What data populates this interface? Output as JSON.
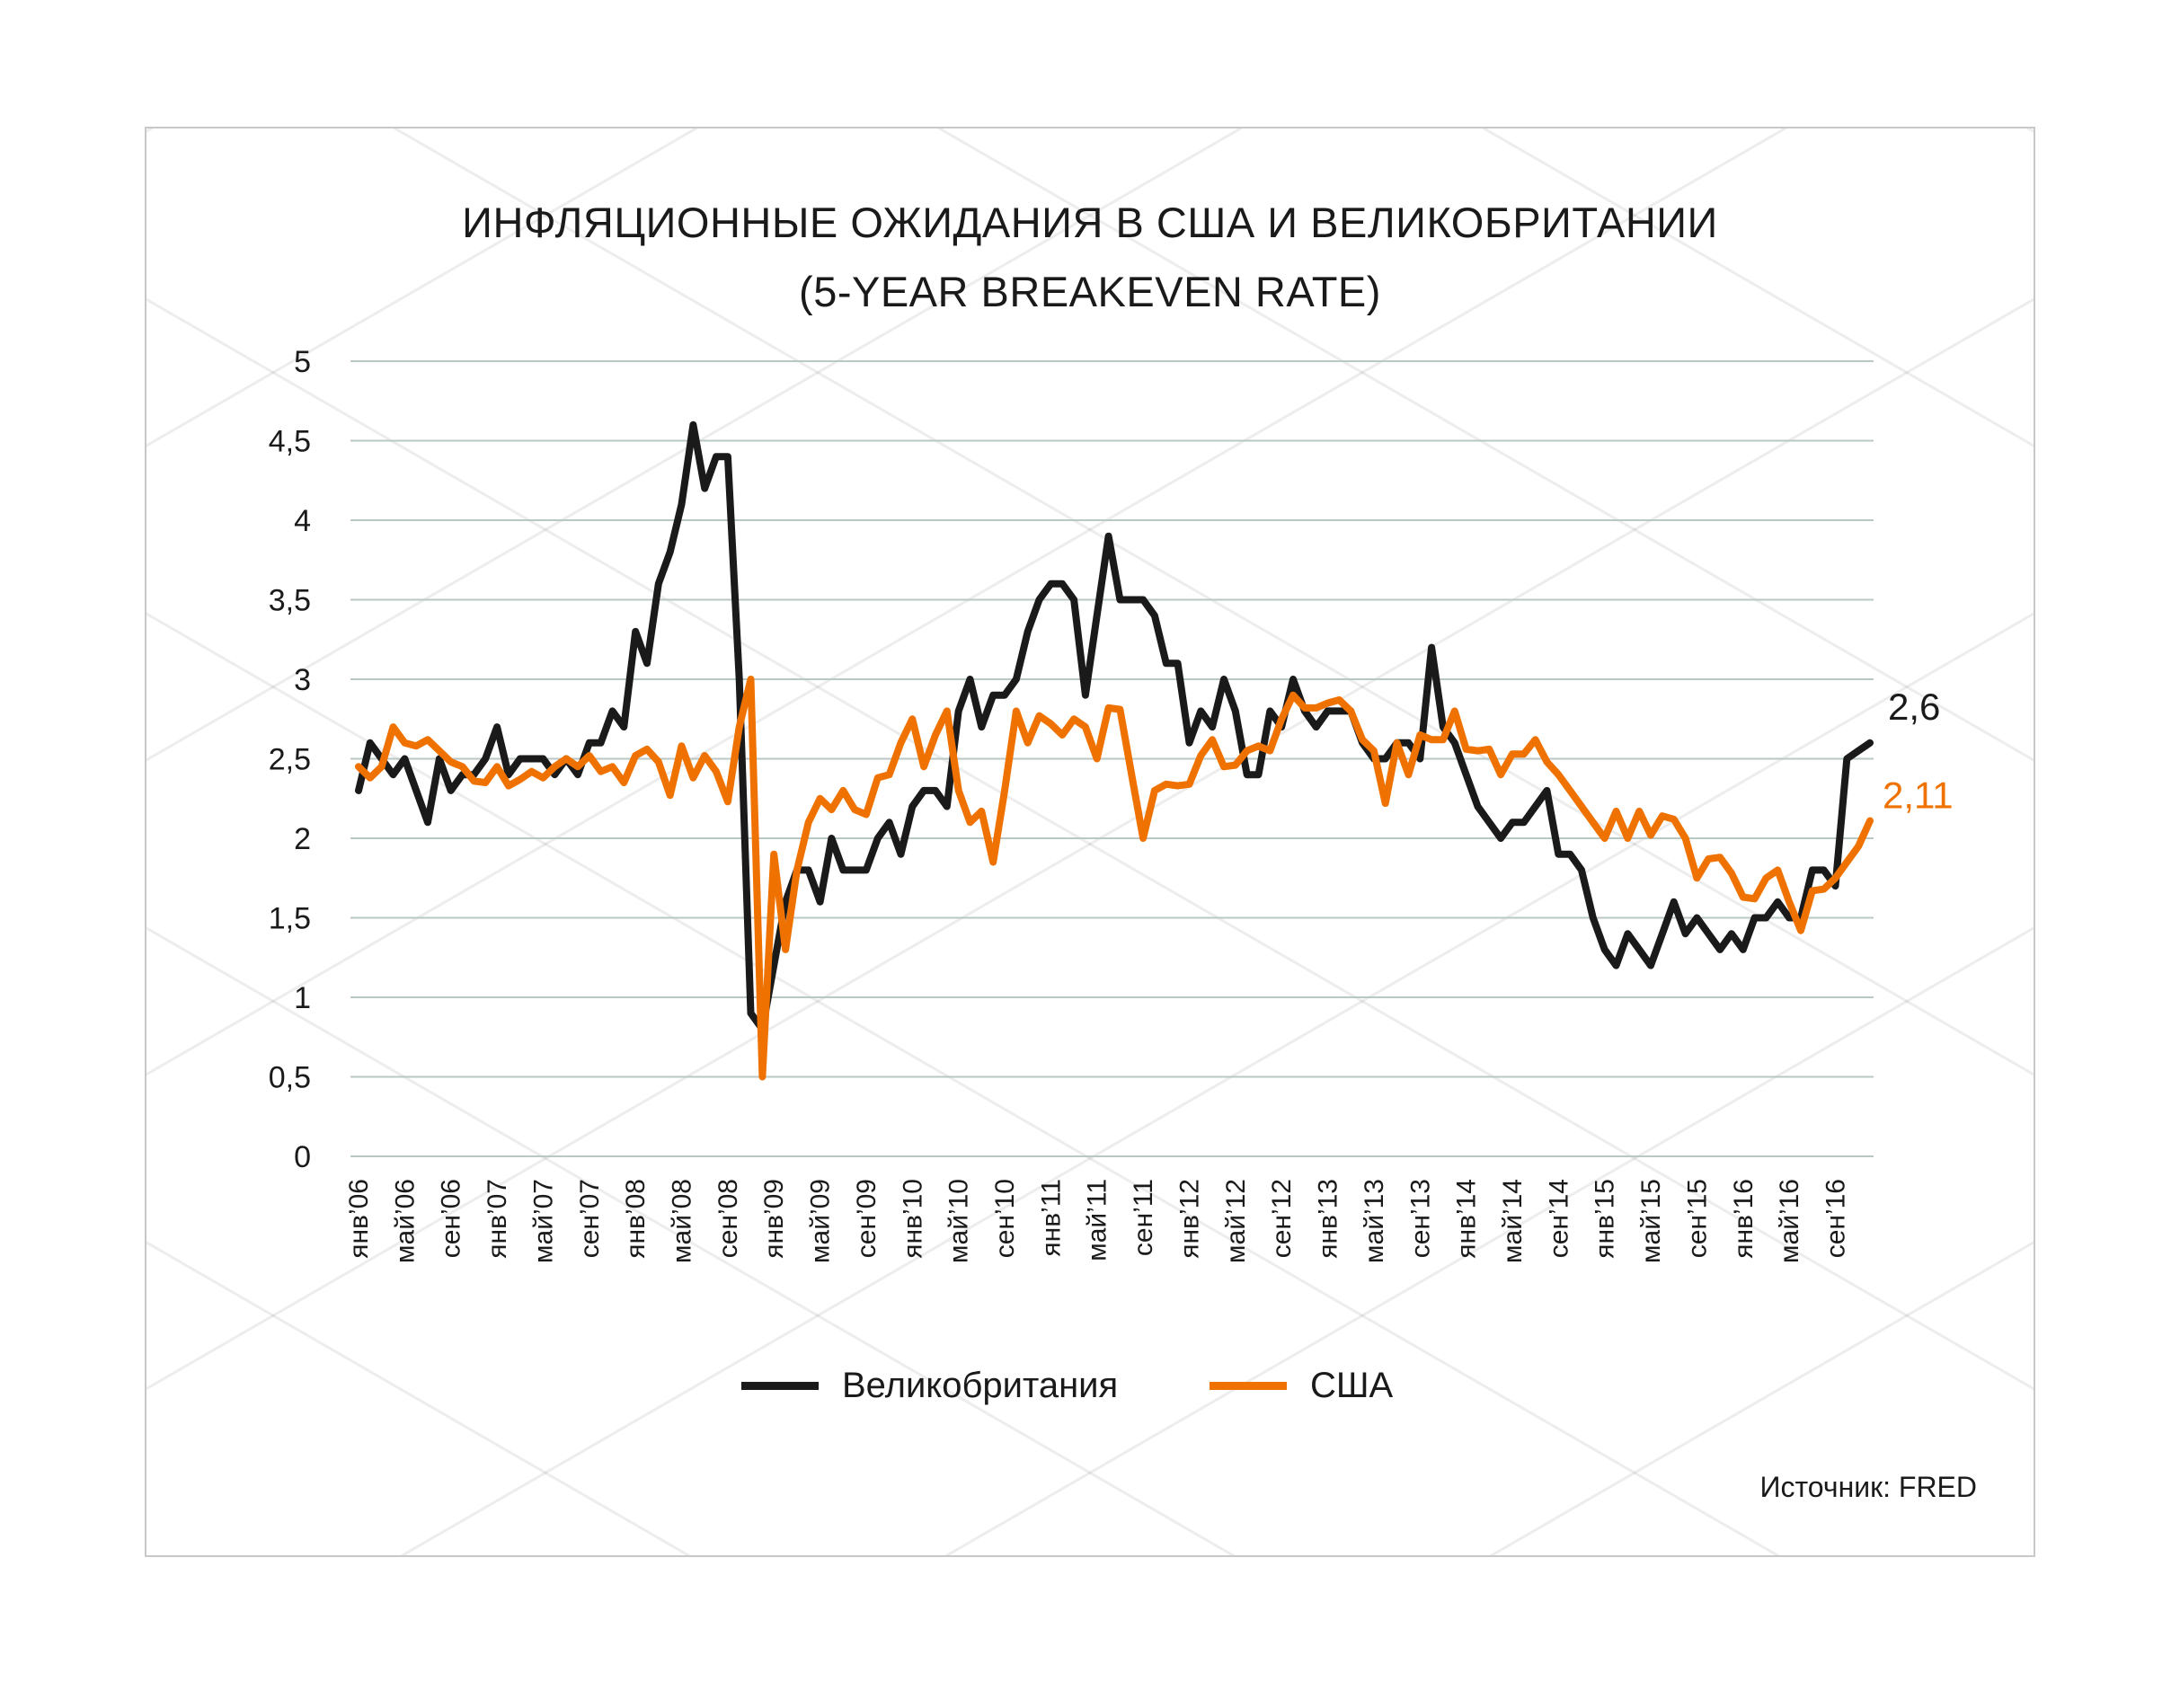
{
  "chart_data": {
    "type": "line",
    "title": "ИНФЛЯЦИОННЫЕ ОЖИДАНИЯ В США И ВЕЛИКОБРИТАНИИ",
    "subtitle": "(5-YEAR BREAKEVEN RATE)",
    "xlabel": "",
    "ylabel": "",
    "ylim": [
      0,
      5
    ],
    "grid": true,
    "y_ticks": [
      "0",
      "0,5",
      "1",
      "1,5",
      "2",
      "2,5",
      "3",
      "3,5",
      "4",
      "4,5",
      "5"
    ],
    "x_tick_labels": [
      "янв’06",
      "май’06",
      "сен’06",
      "янв’07",
      "май’07",
      "сен’07",
      "янв’08",
      "май’08",
      "сен’08",
      "янв’09",
      "май’09",
      "сен’09",
      "янв’10",
      "май’10",
      "сен’10",
      "янв’11",
      "май’11",
      "сен’11",
      "янв’12",
      "май’12",
      "сен’12",
      "янв’13",
      "май’13",
      "сен’13",
      "янв’14",
      "май’14",
      "сен’14",
      "янв’15",
      "май’15",
      "сен’15",
      "янв’16",
      "май’16",
      "сен’16"
    ],
    "x_period": "monthly, Jan 2006 – Dec 2016",
    "legend_position": "bottom",
    "series": [
      {
        "name": "Великобритания",
        "color": "#1a1a1a",
        "end_label": "2,6",
        "values": [
          2.3,
          2.6,
          2.5,
          2.4,
          2.5,
          2.3,
          2.1,
          2.5,
          2.3,
          2.4,
          2.4,
          2.5,
          2.7,
          2.4,
          2.5,
          2.5,
          2.5,
          2.4,
          2.5,
          2.4,
          2.6,
          2.6,
          2.8,
          2.7,
          3.3,
          3.1,
          3.6,
          3.8,
          4.1,
          4.6,
          4.2,
          4.4,
          4.4,
          3.0,
          0.9,
          0.8,
          1.2,
          1.6,
          1.8,
          1.8,
          1.6,
          2.0,
          1.8,
          1.8,
          1.8,
          2.0,
          2.1,
          1.9,
          2.2,
          2.3,
          2.3,
          2.2,
          2.8,
          3.0,
          2.7,
          2.9,
          2.9,
          3.0,
          3.3,
          3.5,
          3.6,
          3.6,
          3.5,
          2.9,
          3.4,
          3.9,
          3.5,
          3.5,
          3.5,
          3.4,
          3.1,
          3.1,
          2.6,
          2.8,
          2.7,
          3.0,
          2.8,
          2.4,
          2.4,
          2.8,
          2.7,
          3.0,
          2.8,
          2.7,
          2.8,
          2.8,
          2.8,
          2.6,
          2.5,
          2.5,
          2.6,
          2.6,
          2.5,
          3.2,
          2.7,
          2.6,
          2.4,
          2.2,
          2.1,
          2.0,
          2.1,
          2.1,
          2.2,
          2.3,
          1.9,
          1.9,
          1.8,
          1.5,
          1.3,
          1.2,
          1.4,
          1.3,
          1.2,
          1.4,
          1.6,
          1.4,
          1.5,
          1.4,
          1.3,
          1.4,
          1.3,
          1.5,
          1.5,
          1.6,
          1.5,
          1.5,
          1.8,
          1.8,
          1.7,
          2.5,
          2.55,
          2.6
        ]
      },
      {
        "name": "США",
        "color": "#ef7200",
        "end_label": "2,11",
        "values": [
          2.45,
          2.38,
          2.45,
          2.7,
          2.6,
          2.58,
          2.62,
          2.55,
          2.48,
          2.45,
          2.36,
          2.35,
          2.45,
          2.33,
          2.37,
          2.42,
          2.38,
          2.45,
          2.5,
          2.45,
          2.52,
          2.42,
          2.45,
          2.35,
          2.52,
          2.56,
          2.48,
          2.27,
          2.58,
          2.38,
          2.52,
          2.42,
          2.23,
          2.7,
          3.0,
          0.5,
          1.9,
          1.3,
          1.8,
          2.1,
          2.25,
          2.18,
          2.3,
          2.18,
          2.15,
          2.38,
          2.4,
          2.6,
          2.75,
          2.45,
          2.65,
          2.8,
          2.3,
          2.1,
          2.17,
          1.85,
          2.3,
          2.8,
          2.6,
          2.77,
          2.72,
          2.65,
          2.75,
          2.7,
          2.5,
          2.82,
          2.81,
          2.4,
          2.0,
          2.3,
          2.34,
          2.33,
          2.34,
          2.52,
          2.62,
          2.45,
          2.46,
          2.55,
          2.58,
          2.55,
          2.75,
          2.9,
          2.82,
          2.82,
          2.85,
          2.87,
          2.8,
          2.62,
          2.55,
          2.22,
          2.6,
          2.4,
          2.65,
          2.62,
          2.62,
          2.8,
          2.56,
          2.55,
          2.56,
          2.4,
          2.53,
          2.53,
          2.62,
          2.48,
          2.4,
          2.3,
          2.2,
          2.1,
          2.0,
          2.17,
          2.0,
          2.17,
          2.02,
          2.14,
          2.12,
          2.0,
          1.75,
          1.87,
          1.88,
          1.78,
          1.63,
          1.62,
          1.75,
          1.8,
          1.6,
          1.42,
          1.67,
          1.68,
          1.75,
          1.85,
          1.95,
          2.11
        ]
      }
    ],
    "source": "Источник: FRED"
  }
}
